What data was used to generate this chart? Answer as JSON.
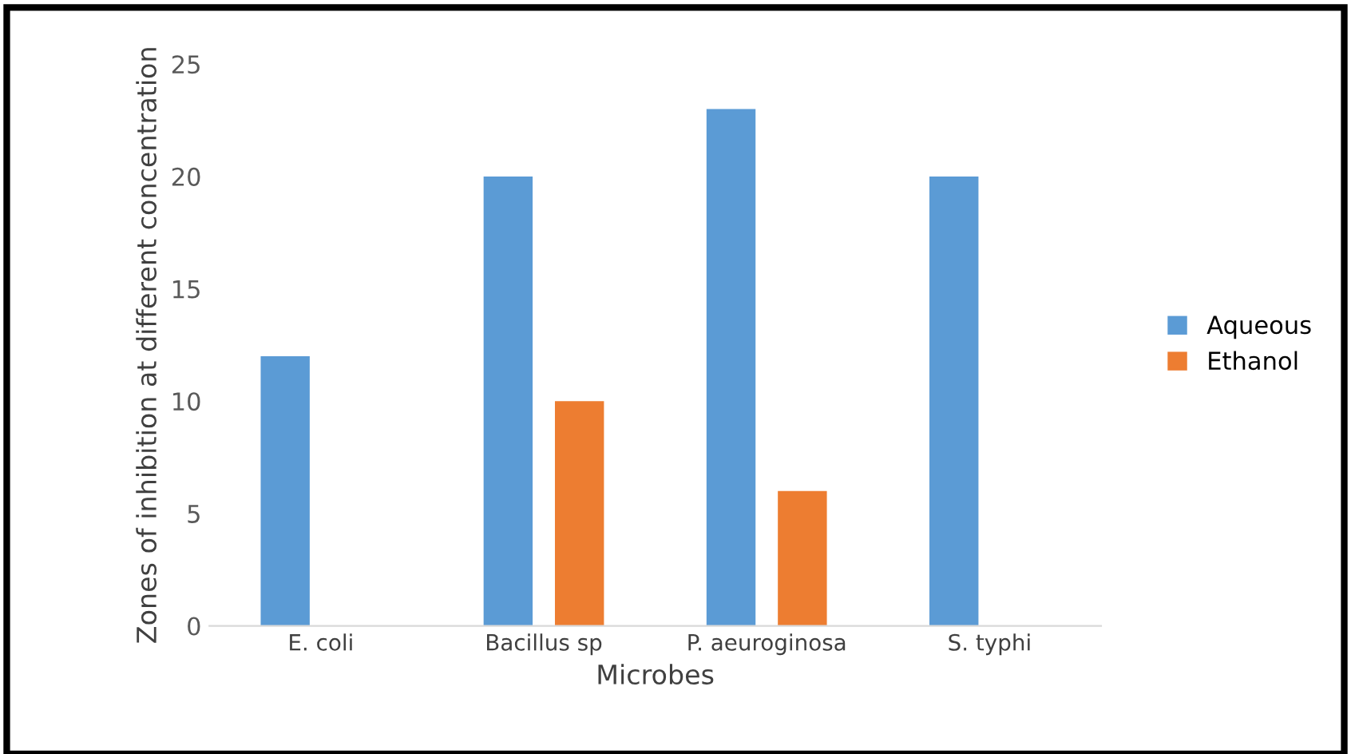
{
  "chart_data": {
    "type": "bar",
    "xlabel": "Microbes",
    "ylabel": "Zones of inhibition at different concentration",
    "categories": [
      "E. coli",
      "Bacillus sp",
      "P. aeuroginosa",
      "S. typhi"
    ],
    "series": [
      {
        "name": "Aqueous",
        "color": "#5b9bd5",
        "values": [
          12,
          20,
          23,
          20
        ]
      },
      {
        "name": "Ethanol",
        "color": "#ed7d31",
        "values": [
          null,
          10,
          6,
          null
        ]
      }
    ],
    "ylim": [
      0,
      25
    ],
    "yticks": [
      0,
      5,
      10,
      15,
      20,
      25
    ],
    "grid": false,
    "legend": "right"
  }
}
